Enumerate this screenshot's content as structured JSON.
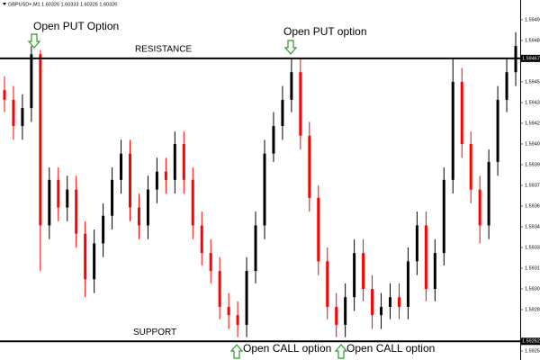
{
  "header": "GBPUSD+,M1  1.60326 1.60333 1.60326 1.60326",
  "chart_data": {
    "type": "candlestick",
    "up_color": "#000000",
    "down_color": "#ff0000",
    "open": [
      1.59444,
      1.59437,
      1.59418,
      1.59431,
      1.5947,
      1.59346,
      1.59379,
      1.59359,
      1.59372,
      1.5934,
      1.59307,
      1.59333,
      1.59353,
      1.59379,
      1.59398,
      1.59359,
      1.59346,
      1.59372,
      1.59385,
      1.59379,
      1.59405,
      1.59379,
      1.59346,
      1.59326,
      1.59313,
      1.59287,
      1.59281,
      1.59274,
      1.59313,
      1.59346,
      1.59398,
      1.59418,
      1.59437,
      1.59457,
      1.59411,
      1.59366,
      1.5932,
      1.59287,
      1.59274,
      1.59294,
      1.59326,
      1.593,
      1.59281,
      1.59287,
      1.59294,
      1.59287,
      1.5932,
      1.59346,
      1.593,
      1.59326,
      1.59379,
      1.5945,
      1.59405,
      1.59372,
      1.59346,
      1.59392,
      1.59437,
      1.59457
    ],
    "high": [
      1.59454,
      1.59447,
      1.59441,
      1.59476,
      1.59473,
      1.59388,
      1.59388,
      1.59382,
      1.59382,
      1.59349,
      1.59343,
      1.59362,
      1.59388,
      1.59408,
      1.59408,
      1.59369,
      1.59382,
      1.59395,
      1.59395,
      1.59414,
      1.59414,
      1.59388,
      1.59356,
      1.59336,
      1.59323,
      1.59297,
      1.59291,
      1.59323,
      1.59356,
      1.59408,
      1.59428,
      1.59447,
      1.59467,
      1.59467,
      1.59421,
      1.59375,
      1.5933,
      1.59297,
      1.59304,
      1.59336,
      1.59336,
      1.5931,
      1.59297,
      1.59304,
      1.59304,
      1.5933,
      1.59356,
      1.59356,
      1.59336,
      1.59388,
      1.59467,
      1.5946,
      1.59414,
      1.59382,
      1.59401,
      1.59447,
      1.59467,
      1.59486
    ],
    "low": [
      1.59428,
      1.59408,
      1.59408,
      1.59421,
      1.59313,
      1.59336,
      1.59349,
      1.59349,
      1.5933,
      1.59294,
      1.59297,
      1.59323,
      1.59343,
      1.59369,
      1.59349,
      1.59336,
      1.59336,
      1.59362,
      1.59369,
      1.59369,
      1.59369,
      1.59336,
      1.59317,
      1.59304,
      1.59278,
      1.59271,
      1.59265,
      1.59265,
      1.59304,
      1.59336,
      1.59392,
      1.59408,
      1.59428,
      1.59401,
      1.59356,
      1.5931,
      1.59278,
      1.59265,
      1.59265,
      1.59284,
      1.59291,
      1.59271,
      1.59271,
      1.59278,
      1.59278,
      1.59278,
      1.5931,
      1.59291,
      1.59291,
      1.59317,
      1.59369,
      1.59395,
      1.59362,
      1.59333,
      1.59336,
      1.59382,
      1.59428,
      1.59447
    ],
    "close": [
      1.59437,
      1.59418,
      1.59431,
      1.5947,
      1.59346,
      1.59379,
      1.59359,
      1.59372,
      1.5934,
      1.59307,
      1.59333,
      1.59353,
      1.59379,
      1.59398,
      1.59359,
      1.59346,
      1.59372,
      1.59385,
      1.59379,
      1.59405,
      1.59379,
      1.59346,
      1.59326,
      1.59313,
      1.59287,
      1.59281,
      1.59274,
      1.59313,
      1.59346,
      1.59398,
      1.59418,
      1.59437,
      1.59457,
      1.59411,
      1.59366,
      1.5932,
      1.59287,
      1.59274,
      1.59294,
      1.59326,
      1.593,
      1.59281,
      1.59287,
      1.59294,
      1.59287,
      1.5932,
      1.59346,
      1.593,
      1.59326,
      1.59379,
      1.5945,
      1.59405,
      1.59372,
      1.59346,
      1.59392,
      1.59437,
      1.59457,
      1.59476
    ],
    "ylim": [
      1.592485,
      1.595093
    ],
    "yticks": [
      {
        "value": 1.59495,
        "label": "1.59495"
      },
      {
        "value": 1.5948,
        "label": "1.59480"
      },
      {
        "value": 1.5945,
        "label": "1.59450"
      },
      {
        "value": 1.59435,
        "label": "1.59435"
      },
      {
        "value": 1.5942,
        "label": "1.59420"
      },
      {
        "value": 1.59405,
        "label": "1.59405"
      },
      {
        "value": 1.5939,
        "label": "1.59390"
      },
      {
        "value": 1.59375,
        "label": "1.59375"
      },
      {
        "value": 1.5936,
        "label": "1.59360"
      },
      {
        "value": 1.59345,
        "label": "1.59345"
      },
      {
        "value": 1.5933,
        "label": "1.59330"
      },
      {
        "value": 1.59315,
        "label": "1.59315"
      },
      {
        "value": 1.593,
        "label": "1.59300"
      },
      {
        "value": 1.59285,
        "label": "1.59285"
      },
      {
        "value": 1.59255,
        "label": "1.59255"
      }
    ],
    "levels": [
      {
        "name": "RESISTANCE",
        "value": 1.59467,
        "label": "1.59467"
      },
      {
        "name": "SUPPORT",
        "value": 1.59262,
        "label": "1.59262"
      }
    ],
    "annotations": [
      "Open PUT Option",
      "Open PUT option",
      "Open CALL option",
      "Open CALL option"
    ]
  }
}
